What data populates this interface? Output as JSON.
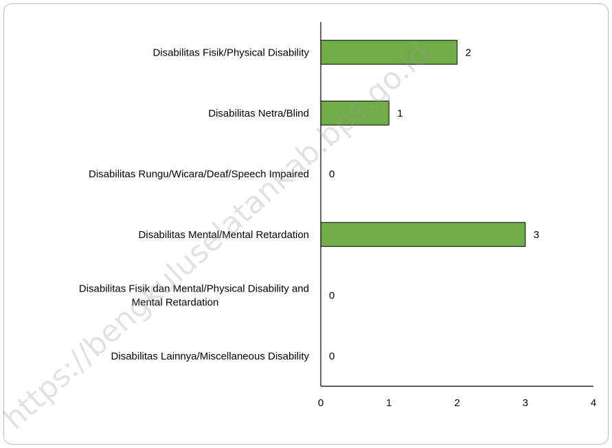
{
  "watermark": "https://bengkuluselatankab.bps.go.id",
  "chart_data": {
    "type": "bar",
    "orientation": "horizontal",
    "categories": [
      [
        "Disabilitas Fisik/Physical Disability"
      ],
      [
        "Disabilitas Netra/Blind"
      ],
      [
        "Disabilitas Rungu/Wicara/Deaf/Speech Impaired"
      ],
      [
        "Disabilitas Mental/Mental Retardation"
      ],
      [
        "Disabilitas Fisik dan Mental/Physical Disability and",
        "Mental Retardation"
      ],
      [
        "Disabilitas Lainnya/Miscellaneous Disability"
      ]
    ],
    "values": [
      2,
      1,
      0,
      3,
      0,
      0
    ],
    "xlim": [
      0,
      4
    ],
    "xticks": [
      "0",
      "1",
      "2",
      "3",
      "4"
    ],
    "bar_color": "#70ad47",
    "bar_edge_color": "#000000",
    "grid": false,
    "data_labels": true
  }
}
